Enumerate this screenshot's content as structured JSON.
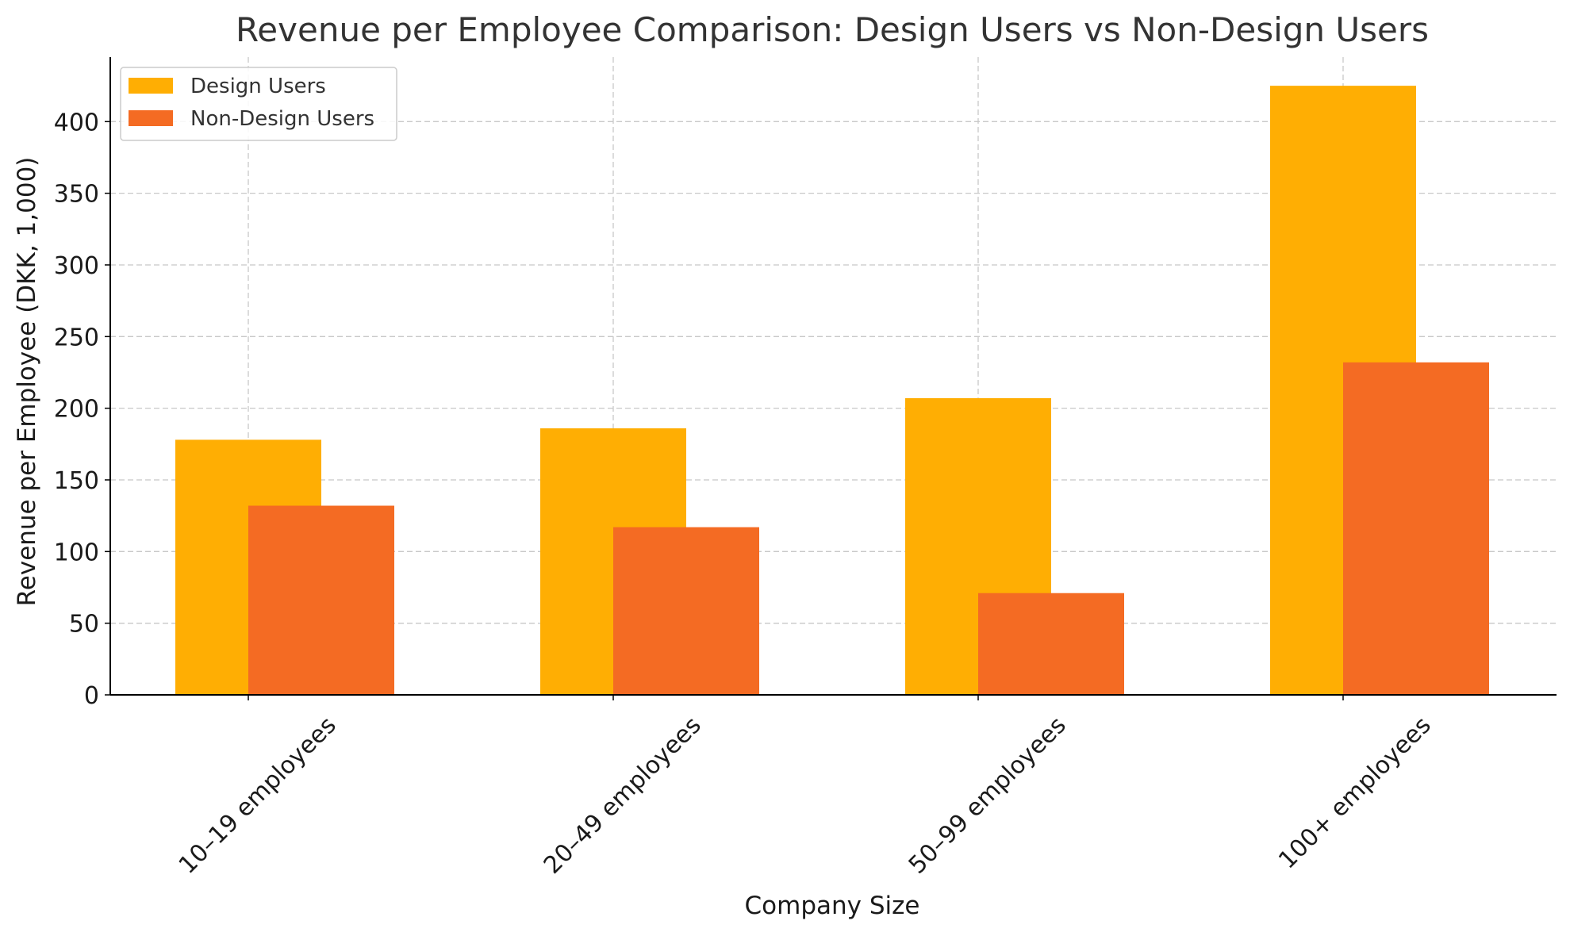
{
  "chart_data": {
    "type": "bar",
    "title": "Revenue per Employee Comparison: Design Users vs Non-Design Users",
    "xlabel": "Company Size",
    "ylabel": "Revenue per Employee (DKK, 1,000)",
    "categories": [
      "10–19 employees",
      "20–49 employees",
      "50–99 employees",
      "100+ employees"
    ],
    "series": [
      {
        "name": "Design Users",
        "color": "#FFAE03",
        "values": [
          178,
          186,
          207,
          425
        ]
      },
      {
        "name": "Non-Design Users",
        "color": "#F46B23",
        "values": [
          132,
          117,
          71,
          232
        ]
      }
    ],
    "ylim": [
      0,
      445
    ],
    "yticks": [
      0,
      50,
      100,
      150,
      200,
      250,
      300,
      350,
      400
    ],
    "grid": true,
    "legend_position": "top-left"
  }
}
